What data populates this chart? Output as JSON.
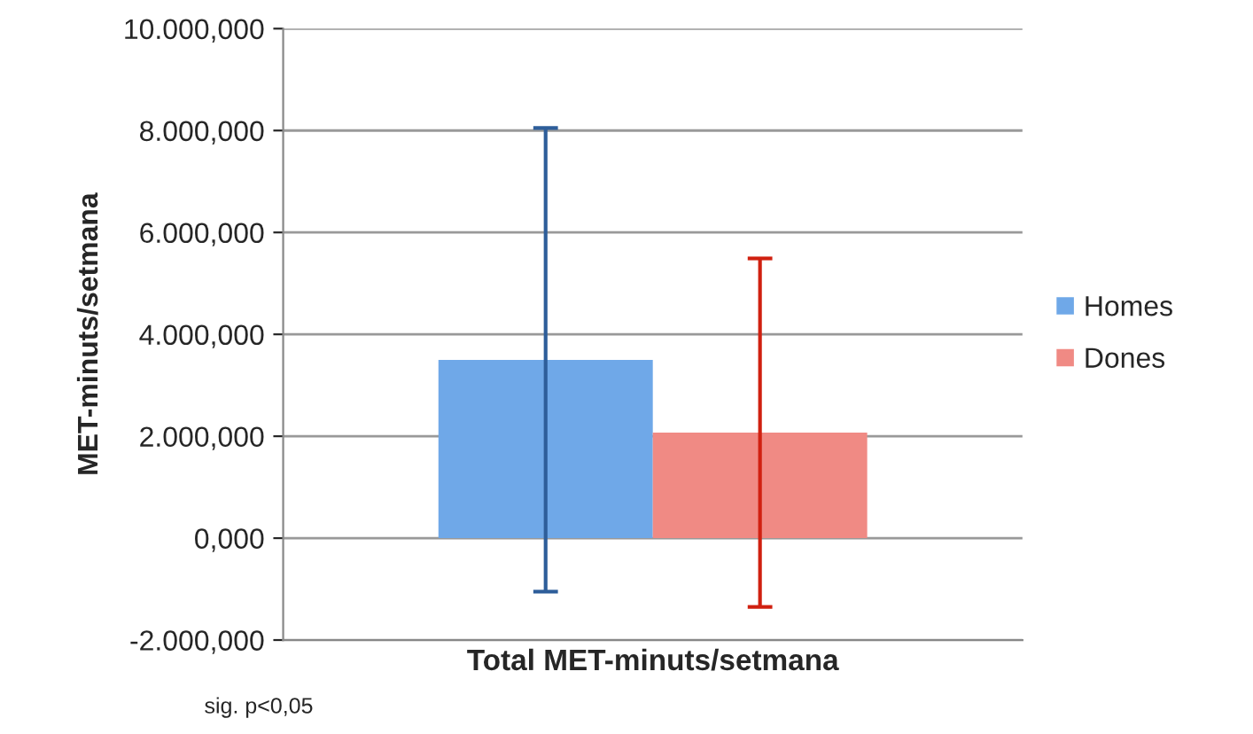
{
  "chart_data": {
    "type": "bar",
    "ylabel": "MET-minuts/setmana",
    "categories": [
      "Total MET-minuts/setmana"
    ],
    "series": [
      {
        "name": "Homes",
        "color": "#6fa8e8",
        "values": [
          3500
        ],
        "errors": [
          4550
        ]
      },
      {
        "name": "Dones",
        "color": "#f08a84",
        "values": [
          2070
        ],
        "errors": [
          3420
        ]
      }
    ],
    "ylim": [
      -2000,
      10000
    ],
    "yticks": [
      {
        "value": -2000,
        "label": "-2.000,000"
      },
      {
        "value": 0,
        "label": "0,000"
      },
      {
        "value": 2000,
        "label": "2.000,000"
      },
      {
        "value": 4000,
        "label": "4.000,000"
      },
      {
        "value": 6000,
        "label": "6.000,000"
      },
      {
        "value": 8000,
        "label": "8.000,000"
      },
      {
        "value": 10000,
        "label": "10.000,000"
      }
    ],
    "grid": "y",
    "legend": "right",
    "annotations": [
      "sig. p<0,05"
    ]
  }
}
